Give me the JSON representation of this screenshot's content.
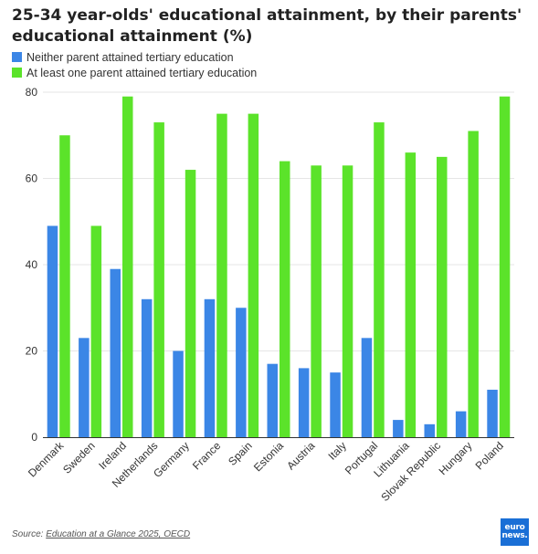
{
  "header": {
    "title": "25-34 year-olds' educational attainment, by their parents' educational attainment (%)"
  },
  "footer": {
    "source_prefix": "Source:",
    "source_link": "Education at a Glance 2025, OECD"
  },
  "logo": {
    "line1": "euro",
    "line2": "news."
  },
  "colors": {
    "series1": "#3b86e6",
    "series2": "#5be32a",
    "grid": "#e6e6e6",
    "axis": "#666666"
  },
  "chart_data": {
    "type": "bar",
    "categories": [
      "Denmark",
      "Sweden",
      "Ireland",
      "Netherlands",
      "Germany",
      "France",
      "Spain",
      "Estonia",
      "Austria",
      "Italy",
      "Portugal",
      "Lithuania",
      "Slovak Republic",
      "Hungary",
      "Poland"
    ],
    "series": [
      {
        "name": "Neither parent attained tertiary education",
        "values": [
          49,
          23,
          39,
          32,
          20,
          32,
          30,
          17,
          16,
          15,
          23,
          4,
          3,
          6,
          11
        ]
      },
      {
        "name": "At least one parent attained tertiary education",
        "values": [
          70,
          49,
          79,
          73,
          62,
          75,
          75,
          64,
          63,
          63,
          73,
          66,
          65,
          71,
          79
        ]
      }
    ],
    "ylim": [
      0,
      80
    ],
    "yticks": [
      0,
      20,
      40,
      60,
      80
    ],
    "grid": true,
    "legend_position": "top-left"
  }
}
